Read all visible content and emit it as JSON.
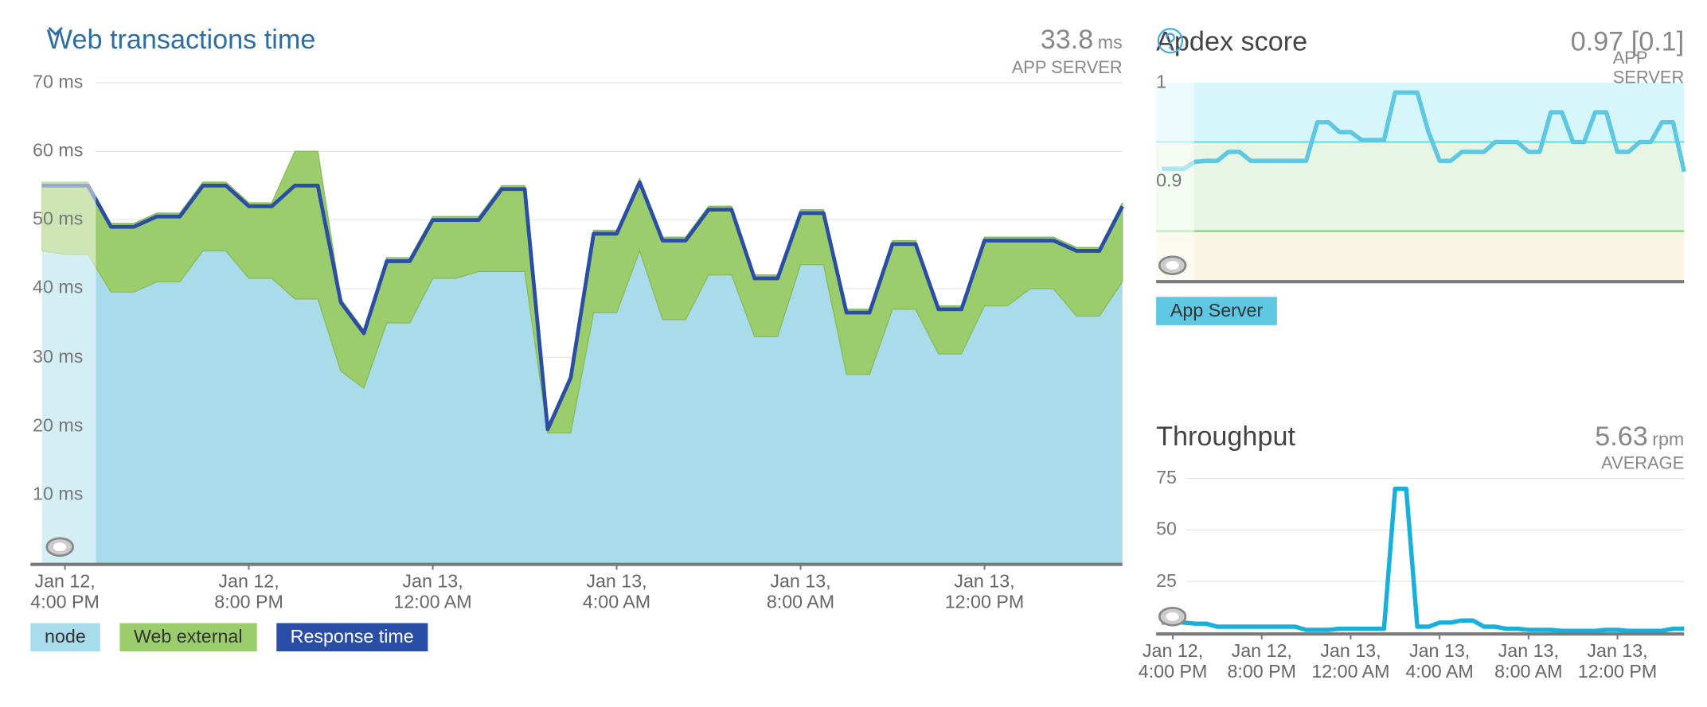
{
  "chart_data": [
    {
      "type": "area",
      "title": "Web transactions time",
      "value": 33.8,
      "unit": "ms",
      "subtitle": "APP SERVER",
      "x": [
        "Jan 12, 3:30 PM",
        "Jan 12, 4:00 PM",
        "Jan 12, 4:30 PM",
        "Jan 12, 5:00 PM",
        "Jan 12, 5:30 PM",
        "Jan 12, 6:00 PM",
        "Jan 12, 6:30 PM",
        "Jan 12, 7:00 PM",
        "Jan 12, 7:30 PM",
        "Jan 12, 8:00 PM",
        "Jan 12, 8:30 PM",
        "Jan 12, 9:00 PM",
        "Jan 12, 9:30 PM",
        "Jan 12, 10:00 PM",
        "Jan 12, 10:30 PM",
        "Jan 12, 11:00 PM",
        "Jan 12, 11:30 PM",
        "Jan 13, 12:00 AM",
        "Jan 13, 12:30 AM",
        "Jan 13, 1:00 AM",
        "Jan 13, 1:30 AM",
        "Jan 13, 2:00 AM",
        "Jan 13, 2:30 AM",
        "Jan 13, 3:00 AM",
        "Jan 13, 3:30 AM",
        "Jan 13, 4:00 AM",
        "Jan 13, 4:30 AM",
        "Jan 13, 5:00 AM",
        "Jan 13, 5:30 AM",
        "Jan 13, 6:00 AM",
        "Jan 13, 6:30 AM",
        "Jan 13, 7:00 AM",
        "Jan 13, 7:30 AM",
        "Jan 13, 8:00 AM",
        "Jan 13, 8:30 AM",
        "Jan 13, 9:00 AM",
        "Jan 13, 9:30 AM",
        "Jan 13, 10:00 AM",
        "Jan 13, 10:30 AM",
        "Jan 13, 11:00 AM",
        "Jan 13, 11:30 AM",
        "Jan 13, 12:00 PM",
        "Jan 13, 12:30 PM",
        "Jan 13, 1:00 PM",
        "Jan 13, 1:30 PM",
        "Jan 13, 2:00 PM",
        "Jan 13, 2:30 PM",
        "Jan 13, 3:00 PM"
      ],
      "xlim": [
        "Jan 12, 3:15 PM",
        "Jan 13, 3:00 PM"
      ],
      "xticks": [
        "Jan 12,\n4:00 PM",
        "Jan 12,\n8:00 PM",
        "Jan 13,\n12:00 AM",
        "Jan 13,\n4:00 AM",
        "Jan 13,\n8:00 AM",
        "Jan 13,\n12:00 PM"
      ],
      "ylim": [
        0,
        70
      ],
      "yticks": [
        {
          "value": 10,
          "label": "10 ms"
        },
        {
          "value": 20,
          "label": "20 ms"
        },
        {
          "value": 30,
          "label": "30 ms"
        },
        {
          "value": 40,
          "label": "40 ms"
        },
        {
          "value": 50,
          "label": "50 ms"
        },
        {
          "value": 60,
          "label": "60 ms"
        },
        {
          "value": 70,
          "label": "70 ms"
        }
      ],
      "grid": true,
      "series": [
        {
          "name": "node",
          "color": "#a9dcea",
          "values": [
            45.5,
            45,
            45,
            39.5,
            39.5,
            41,
            41,
            45.5,
            45.5,
            41.5,
            41.5,
            38.5,
            38.5,
            28,
            25.5,
            35,
            35,
            41.5,
            41.5,
            42.5,
            42.5,
            42.5,
            19,
            19,
            36.5,
            36.5,
            45.5,
            35.5,
            35.5,
            42,
            42,
            33,
            33,
            43.5,
            43.5,
            27.5,
            27.5,
            37,
            37,
            30.5,
            30.5,
            37.5,
            37.5,
            40,
            40,
            36,
            36,
            41
          ]
        },
        {
          "name": "Web external",
          "color": "#9ccd6c",
          "values": [
            10,
            10.5,
            10.5,
            10,
            10,
            10,
            10,
            10,
            10,
            11,
            11,
            21.5,
            21.5,
            10.5,
            8.5,
            9.5,
            9.5,
            9,
            9,
            8,
            12.5,
            12.5,
            1,
            8.5,
            12,
            12,
            10.5,
            12,
            12,
            10,
            10,
            9,
            9,
            8,
            8,
            9.5,
            9.5,
            10,
            10,
            7,
            7,
            10,
            10,
            7.5,
            7.5,
            10,
            10,
            11.5
          ]
        },
        {
          "name": "Response time",
          "color": "#2a4ea6",
          "type": "line",
          "values": [
            55,
            55,
            55,
            49,
            49,
            50.5,
            50.5,
            55,
            55,
            52,
            52,
            55,
            55,
            38,
            33.5,
            44,
            44,
            50,
            50,
            50,
            54.5,
            54.5,
            19.5,
            27,
            48,
            48,
            55.5,
            47,
            47,
            51.5,
            51.5,
            41.5,
            41.5,
            51,
            51,
            36.5,
            36.5,
            46.5,
            46.5,
            37,
            37,
            47,
            47,
            47,
            47,
            45.5,
            45.5,
            52
          ]
        }
      ]
    },
    {
      "type": "line",
      "title": "Apdex score",
      "value": "0.97 [0.1]",
      "subtitle": "APP SERVER",
      "x": [
        "Jan 12, 3:30 PM",
        "Jan 12, 4:00 PM",
        "Jan 12, 4:30 PM",
        "Jan 12, 5:00 PM",
        "Jan 12, 5:30 PM",
        "Jan 12, 6:00 PM",
        "Jan 12, 6:30 PM",
        "Jan 12, 7:00 PM",
        "Jan 12, 7:30 PM",
        "Jan 12, 8:00 PM",
        "Jan 12, 8:30 PM",
        "Jan 12, 9:00 PM",
        "Jan 12, 9:30 PM",
        "Jan 12, 10:00 PM",
        "Jan 12, 10:30 PM",
        "Jan 12, 11:00 PM",
        "Jan 12, 11:30 PM",
        "Jan 13, 12:00 AM",
        "Jan 13, 12:30 AM",
        "Jan 13, 1:00 AM",
        "Jan 13, 1:30 AM",
        "Jan 13, 2:00 AM",
        "Jan 13, 2:30 AM",
        "Jan 13, 3:00 AM",
        "Jan 13, 3:30 AM",
        "Jan 13, 4:00 AM",
        "Jan 13, 4:30 AM",
        "Jan 13, 5:00 AM",
        "Jan 13, 5:30 AM",
        "Jan 13, 6:00 AM",
        "Jan 13, 6:30 AM",
        "Jan 13, 7:00 AM",
        "Jan 13, 7:30 AM",
        "Jan 13, 8:00 AM",
        "Jan 13, 8:30 AM",
        "Jan 13, 9:00 AM",
        "Jan 13, 9:30 AM",
        "Jan 13, 10:00 AM",
        "Jan 13, 10:30 AM",
        "Jan 13, 11:00 AM",
        "Jan 13, 11:30 AM",
        "Jan 13, 12:00 PM",
        "Jan 13, 12:30 PM",
        "Jan 13, 1:00 PM",
        "Jan 13, 1:30 PM",
        "Jan 13, 2:00 PM",
        "Jan 13, 2:30 PM",
        "Jan 13, 3:00 PM"
      ],
      "xlim": [
        "Jan 12, 3:15 PM",
        "Jan 13, 3:00 PM"
      ],
      "ylim": [
        0.8,
        1
      ],
      "yticks": [
        0.9,
        1
      ],
      "thresholds": [
        0.85,
        0.94
      ],
      "series": [
        {
          "name": "App Server",
          "color": "#5ec8e2",
          "values": [
            0.913,
            0.913,
            0.913,
            0.92,
            0.921,
            0.921,
            0.93,
            0.93,
            0.921,
            0.921,
            0.921,
            0.921,
            0.921,
            0.921,
            0.96,
            0.96,
            0.95,
            0.95,
            0.942,
            0.942,
            0.942,
            0.99,
            0.99,
            0.99,
            0.95,
            0.921,
            0.921,
            0.93,
            0.93,
            0.93,
            0.94,
            0.94,
            0.94,
            0.93,
            0.93,
            0.97,
            0.97,
            0.94,
            0.94,
            0.97,
            0.97,
            0.93,
            0.93,
            0.94,
            0.94,
            0.96,
            0.96,
            0.91
          ]
        }
      ]
    },
    {
      "type": "line",
      "title": "Throughput",
      "value": 5.63,
      "unit": "rpm",
      "subtitle": "AVERAGE",
      "x": [
        "Jan 12, 3:30 PM",
        "Jan 12, 4:00 PM",
        "Jan 12, 4:30 PM",
        "Jan 12, 5:00 PM",
        "Jan 12, 5:30 PM",
        "Jan 12, 6:00 PM",
        "Jan 12, 6:30 PM",
        "Jan 12, 7:00 PM",
        "Jan 12, 7:30 PM",
        "Jan 12, 8:00 PM",
        "Jan 12, 8:30 PM",
        "Jan 12, 9:00 PM",
        "Jan 12, 9:30 PM",
        "Jan 12, 10:00 PM",
        "Jan 12, 10:30 PM",
        "Jan 12, 11:00 PM",
        "Jan 12, 11:30 PM",
        "Jan 13, 12:00 AM",
        "Jan 13, 12:30 AM",
        "Jan 13, 1:00 AM",
        "Jan 13, 1:30 AM",
        "Jan 13, 2:00 AM",
        "Jan 13, 2:30 AM",
        "Jan 13, 3:00 AM",
        "Jan 13, 3:30 AM",
        "Jan 13, 4:00 AM",
        "Jan 13, 4:30 AM",
        "Jan 13, 5:00 AM",
        "Jan 13, 5:30 AM",
        "Jan 13, 6:00 AM",
        "Jan 13, 6:30 AM",
        "Jan 13, 7:00 AM",
        "Jan 13, 7:30 AM",
        "Jan 13, 8:00 AM",
        "Jan 13, 8:30 AM",
        "Jan 13, 9:00 AM",
        "Jan 13, 9:30 AM",
        "Jan 13, 10:00 AM",
        "Jan 13, 10:30 AM",
        "Jan 13, 11:00 AM",
        "Jan 13, 11:30 AM",
        "Jan 13, 12:00 PM",
        "Jan 13, 12:30 PM",
        "Jan 13, 1:00 PM",
        "Jan 13, 1:30 PM",
        "Jan 13, 2:00 PM",
        "Jan 13, 2:30 PM",
        "Jan 13, 3:00 PM"
      ],
      "xlim": [
        "Jan 12, 3:15 PM",
        "Jan 13, 3:00 PM"
      ],
      "xticks": [
        "Jan 12,\n4:00 PM",
        "Jan 12,\n8:00 PM",
        "Jan 13,\n12:00 AM",
        "Jan 13,\n4:00 AM",
        "Jan 13,\n8:00 AM",
        "Jan 13,\n12:00 PM"
      ],
      "ylim": [
        0,
        75
      ],
      "yticks": [
        25,
        50,
        75
      ],
      "grid": true,
      "series": [
        {
          "color": "#17b0da",
          "values": [
            5,
            5,
            5,
            4.5,
            4.5,
            3,
            3,
            3,
            3,
            3,
            3,
            3,
            3,
            1.5,
            1.5,
            1.5,
            2,
            2,
            2,
            2,
            2,
            70,
            70,
            3,
            3,
            5,
            5,
            6,
            6,
            3,
            3,
            2,
            2,
            1.5,
            1.5,
            1.5,
            1,
            1,
            1,
            1,
            1.5,
            1.5,
            1,
            1,
            1,
            1,
            2,
            2
          ]
        }
      ]
    }
  ]
}
